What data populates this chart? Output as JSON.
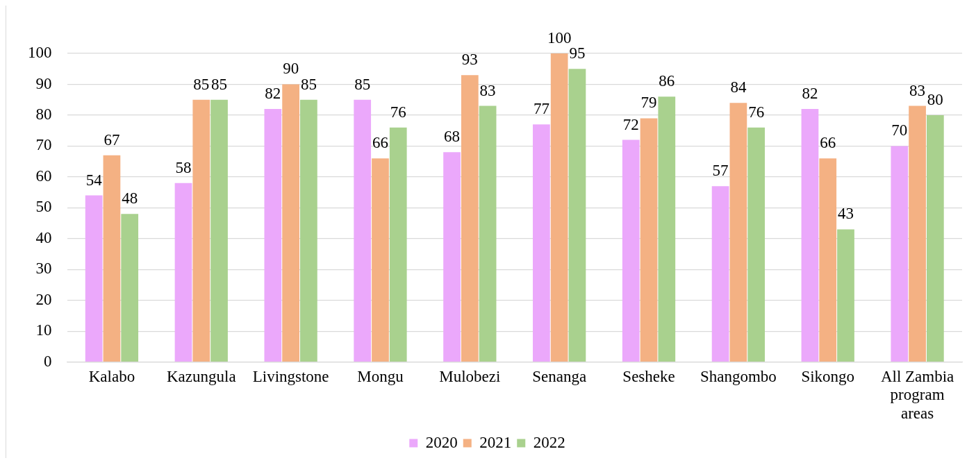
{
  "chart_data": {
    "type": "bar",
    "categories": [
      "Kalabo",
      "Kazungula",
      "Livingstone",
      "Mongu",
      "Mulobezi",
      "Senanga",
      "Sesheke",
      "Shangombo",
      "Sikongo",
      "All Zambia program areas"
    ],
    "series": [
      {
        "name": "2020",
        "color": "#eba8fb",
        "values": [
          54,
          58,
          82,
          85,
          68,
          77,
          72,
          57,
          82,
          70
        ]
      },
      {
        "name": "2021",
        "color": "#f4b183",
        "values": [
          67,
          85,
          90,
          66,
          93,
          100,
          79,
          84,
          66,
          83
        ]
      },
      {
        "name": "2022",
        "color": "#a9d18e",
        "values": [
          48,
          85,
          85,
          76,
          83,
          95,
          86,
          76,
          43,
          80
        ]
      }
    ],
    "ylim": [
      0,
      100
    ],
    "yticks": [
      0,
      10,
      20,
      30,
      40,
      50,
      60,
      70,
      80,
      90,
      100
    ],
    "grid": "y",
    "legend": "bottom",
    "data_labels": true
  }
}
